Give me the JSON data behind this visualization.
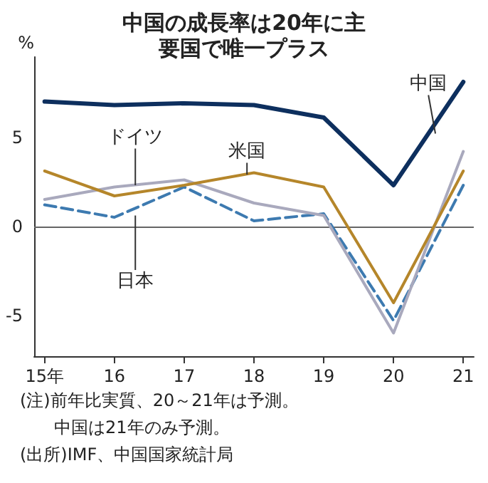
{
  "chart_data": {
    "type": "line",
    "title": "中国の成長率は20年に主要国で唯一プラス",
    "ylabel": "%",
    "x": [
      15,
      16,
      17,
      18,
      19,
      20,
      21
    ],
    "series": [
      {
        "name": "中国",
        "color": "#0d2f5e",
        "values": [
          7.0,
          6.8,
          6.9,
          6.8,
          6.1,
          2.3,
          8.1
        ]
      },
      {
        "name": "米国",
        "color": "#b5862a",
        "values": [
          3.1,
          1.7,
          2.3,
          3.0,
          2.2,
          -4.3,
          3.1
        ]
      },
      {
        "name": "ドイツ",
        "color": "#a9a9bd",
        "values": [
          1.5,
          2.2,
          2.6,
          1.3,
          0.6,
          -6.0,
          4.2
        ]
      },
      {
        "name": "日本",
        "color": "#3d7ab0",
        "values": [
          1.2,
          0.5,
          2.2,
          0.3,
          0.7,
          -5.3,
          2.3
        ],
        "line_style": "dashed"
      }
    ],
    "xlim": [
      14.85,
      21.15
    ],
    "xticks": [
      {
        "value": 15,
        "label": "15年"
      },
      16,
      17,
      18,
      19,
      20,
      21
    ],
    "ylim": [
      -7.3,
      9.5
    ],
    "yticks": [
      -5,
      0,
      5
    ],
    "ref_lines": [
      {
        "axis": "y",
        "value": 0,
        "color": "#666666"
      }
    ],
    "grid": false,
    "legend": false,
    "marker": "none",
    "line_style": "solid",
    "annotations": [
      "(注)前年比実質、20～21年は予測。",
      "中国は21年のみ予測。",
      "(出所)IMF、中国国家統計局"
    ]
  }
}
